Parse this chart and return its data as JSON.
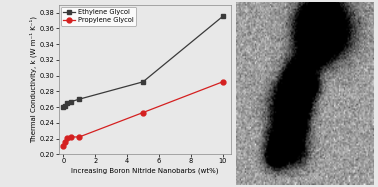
{
  "eg_x": [
    0.0,
    0.1,
    0.25,
    0.5,
    1.0,
    5.0,
    10.0
  ],
  "eg_y": [
    0.26,
    0.261,
    0.265,
    0.267,
    0.27,
    0.292,
    0.375
  ],
  "pg_x": [
    0.0,
    0.1,
    0.25,
    0.5,
    1.0,
    5.0,
    10.0
  ],
  "pg_y": [
    0.211,
    0.215,
    0.221,
    0.222,
    0.222,
    0.253,
    0.292
  ],
  "eg_color": "#3a3a3a",
  "pg_color": "#d42020",
  "eg_label": "Ethylene Glycol",
  "pg_label": "Propylene Glycol",
  "xlabel": "Increasing Boron Nitride Nanobarbs (wt%)",
  "ylabel": "Thermal Conductivity, k (W m⁻¹ K⁻¹)",
  "xlim": [
    -0.3,
    10.5
  ],
  "ylim": [
    0.2,
    0.39
  ],
  "yticks": [
    0.2,
    0.22,
    0.24,
    0.26,
    0.28,
    0.3,
    0.32,
    0.34,
    0.36,
    0.38
  ],
  "xticks": [
    0,
    2,
    4,
    6,
    8,
    10
  ],
  "bg_color": "#e8e8e8",
  "plot_bg": "#e8e8e8",
  "tem_bg": "#a0a0a0"
}
